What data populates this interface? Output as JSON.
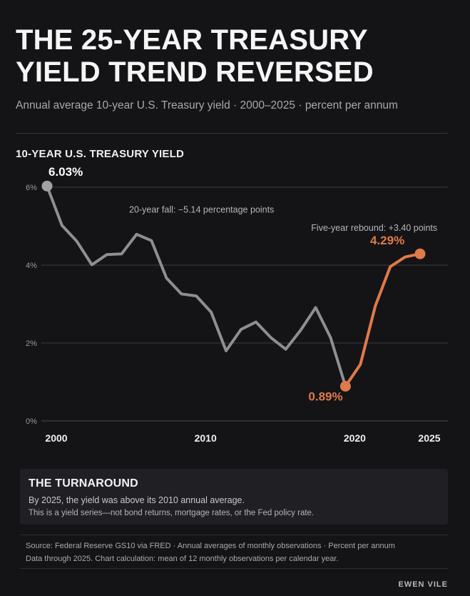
{
  "header": {
    "title_line1": "THE 25-YEAR TREASURY",
    "title_line2": "YIELD TREND REVERSED",
    "subtitle": "Annual average 10-year U.S. Treasury yield · 2000–2025 · percent per annum"
  },
  "chart_data": {
    "type": "line",
    "title": "10-YEAR U.S. TREASURY YIELD",
    "x": [
      2000,
      2001,
      2002,
      2003,
      2004,
      2005,
      2006,
      2007,
      2008,
      2009,
      2010,
      2011,
      2012,
      2013,
      2014,
      2015,
      2016,
      2017,
      2018,
      2019,
      2020,
      2021,
      2022,
      2023,
      2024,
      2025
    ],
    "y": [
      6.03,
      5.02,
      4.61,
      4.01,
      4.27,
      4.29,
      4.79,
      4.63,
      3.67,
      3.26,
      3.21,
      2.79,
      1.8,
      2.35,
      2.54,
      2.14,
      1.84,
      2.33,
      2.91,
      2.14,
      0.89,
      1.45,
      2.95,
      3.96,
      4.21,
      4.29
    ],
    "series": [
      {
        "name": "2000–2020",
        "x_from": 2000,
        "x_to": 2020,
        "color": "#8e8e93"
      },
      {
        "name": "2020–2025",
        "x_from": 2020,
        "x_to": 2025,
        "color": "#e07a48"
      }
    ],
    "xlim": [
      2000,
      2025
    ],
    "ylim": [
      0,
      6
    ],
    "x_ticks": [
      "2000",
      "2010",
      "2020",
      "2025"
    ],
    "x_tick_values": [
      2000,
      2010,
      2020,
      2025
    ],
    "y_ticks": [
      "0%",
      "2%",
      "4%",
      "6%"
    ],
    "y_tick_values": [
      0,
      2,
      4,
      6
    ],
    "grid": true,
    "point_labels": [
      {
        "x": 2000,
        "text": "6.03%",
        "color": "#ffffff"
      },
      {
        "x": 2020,
        "text": "0.89%",
        "color": "#e07a48"
      },
      {
        "x": 2025,
        "text": "4.29%",
        "color": "#e07a48"
      }
    ],
    "annotations": [
      {
        "text": "20-year fall: −5.14 percentage points",
        "x": 2005.5,
        "y": 5.35
      },
      {
        "text": "Five-year rebound: +3.40 points",
        "x": 2017.7,
        "y": 4.88
      }
    ]
  },
  "card": {
    "title": "THE TURNAROUND",
    "line1": "By 2025, the yield was above its 2010 annual average.",
    "line2": "This is a yield series—not bond returns, mortgage rates, or the Fed policy rate."
  },
  "source": {
    "line1": "Source: Federal Reserve GS10 via FRED · Annual averages of monthly observations · Percent per annum",
    "line2": "Data through 2025. Chart calculation: mean of 12 monthly observations per calendar year."
  },
  "brand": "EWEN VILE",
  "colors": {
    "background": "#141417",
    "historic_line": "#8e8e93",
    "rebound_line": "#e07a48",
    "grid": "#3a3a40"
  }
}
